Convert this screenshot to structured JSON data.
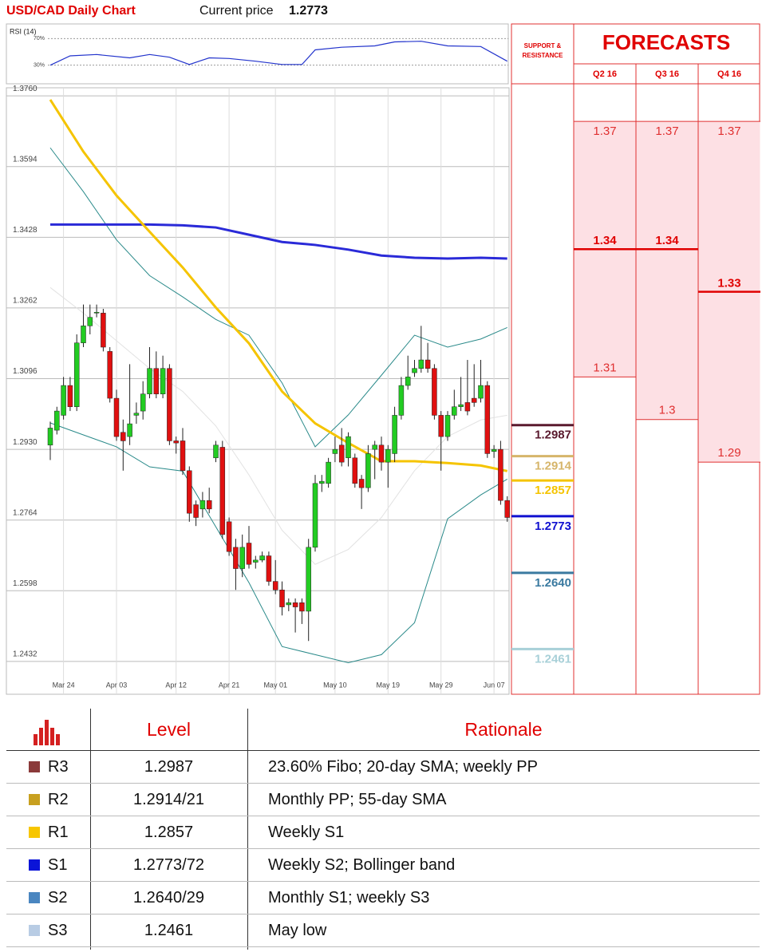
{
  "header": {
    "title": "USD/CAD Daily Chart",
    "price_label": "Current price",
    "price": "1.2773"
  },
  "chart_data": [
    {
      "type": "line",
      "title": "RSI (14)",
      "ylim": [
        2,
        92
      ],
      "yticks": [
        {
          "value": 30,
          "label": "30%"
        },
        {
          "value": 70,
          "label": "70%"
        }
      ],
      "grid": true,
      "color": "#2233cc",
      "x": [
        0,
        3,
        7,
        12,
        15,
        18,
        21,
        24,
        27,
        31,
        35,
        38,
        40,
        44,
        49,
        52,
        56,
        60,
        65,
        69
      ],
      "values": [
        30,
        44,
        46,
        41,
        46,
        42,
        31,
        41,
        40,
        36,
        31,
        31,
        53,
        57,
        59,
        65,
        66,
        59,
        58,
        36
      ]
    },
    {
      "type": "candlestick",
      "ylim": [
        1.2355,
        1.3779
      ],
      "yticks": [
        {
          "value": 1.376,
          "label": "1.3760"
        },
        1.3594,
        1.3428,
        1.3262,
        1.3096,
        {
          "value": 1.293,
          "label": "1.2930"
        },
        1.2764,
        1.2598,
        1.2432
      ],
      "grid": true,
      "up_color": "#22cc22",
      "down_color": "#e01010",
      "categories": [
        null,
        null,
        "Mar 24",
        null,
        null,
        null,
        null,
        null,
        null,
        null,
        "Apr 03",
        null,
        null,
        null,
        null,
        null,
        null,
        null,
        null,
        "Apr 12",
        null,
        null,
        null,
        null,
        null,
        null,
        null,
        "Apr 21",
        null,
        null,
        null,
        null,
        null,
        null,
        "May 01",
        null,
        null,
        null,
        null,
        null,
        null,
        null,
        null,
        "May 10",
        null,
        null,
        null,
        null,
        null,
        null,
        null,
        "May 19",
        null,
        null,
        null,
        null,
        null,
        null,
        null,
        "May 29",
        null,
        null,
        null,
        null,
        null,
        null,
        null,
        "Jun 07",
        null,
        null
      ],
      "open": [
        1.294,
        1.2975,
        1.301,
        1.308,
        1.303,
        1.318,
        1.322,
        1.325,
        1.325,
        1.316,
        1.305,
        1.297,
        1.296,
        1.301,
        1.302,
        1.306,
        1.312,
        1.306,
        1.312,
        1.295,
        1.295,
        1.288,
        1.28,
        1.279,
        1.281,
        1.291,
        1.2935,
        1.276,
        1.27,
        1.265,
        1.271,
        1.2665,
        1.267,
        1.268,
        1.262,
        1.26,
        1.2565,
        1.257,
        1.257,
        1.255,
        1.27,
        1.285,
        1.285,
        1.292,
        1.294,
        1.291,
        1.291,
        1.286,
        1.284,
        1.293,
        1.294,
        1.29,
        1.292,
        1.301,
        1.308,
        1.311,
        1.312,
        1.314,
        1.312,
        1.301,
        1.296,
        1.301,
        1.303,
        1.304,
        1.305,
        1.305,
        1.308,
        1.2925,
        1.293,
        1.281
      ],
      "high": [
        1.2995,
        1.303,
        1.31,
        1.31,
        1.32,
        1.327,
        1.327,
        1.327,
        1.326,
        1.317,
        1.307,
        1.3,
        1.313,
        1.304,
        1.309,
        1.317,
        1.316,
        1.315,
        1.313,
        1.296,
        1.298,
        1.289,
        1.281,
        1.283,
        1.284,
        1.295,
        1.295,
        1.277,
        1.272,
        1.273,
        1.275,
        1.268,
        1.269,
        1.269,
        1.267,
        1.262,
        1.258,
        1.258,
        1.258,
        1.272,
        1.287,
        1.287,
        1.291,
        1.296,
        1.298,
        1.297,
        1.292,
        1.287,
        1.294,
        1.295,
        1.296,
        1.294,
        1.303,
        1.31,
        1.315,
        1.314,
        1.322,
        1.318,
        1.313,
        1.302,
        1.302,
        1.307,
        1.31,
        1.314,
        1.313,
        1.314,
        1.309,
        1.294,
        1.295,
        1.282
      ],
      "low": [
        1.2905,
        1.2965,
        1.3,
        1.302,
        1.302,
        1.317,
        1.32,
        1.324,
        1.316,
        1.304,
        1.295,
        1.288,
        1.294,
        1.299,
        1.3,
        1.305,
        1.305,
        1.305,
        1.294,
        1.292,
        1.287,
        1.276,
        1.275,
        1.277,
        1.278,
        1.29,
        1.272,
        1.268,
        1.26,
        1.263,
        1.265,
        1.265,
        1.2665,
        1.261,
        1.259,
        1.254,
        1.255,
        1.25,
        1.252,
        1.248,
        1.269,
        1.283,
        1.284,
        1.29,
        1.289,
        1.289,
        1.284,
        1.279,
        1.283,
        1.286,
        1.288,
        1.284,
        1.29,
        1.3,
        1.307,
        1.31,
        1.311,
        1.311,
        1.3,
        1.288,
        1.295,
        1.3,
        1.302,
        1.301,
        1.303,
        1.304,
        1.291,
        1.291,
        1.28,
        1.276
      ],
      "close": [
        1.298,
        1.302,
        1.308,
        1.303,
        1.318,
        1.322,
        1.324,
        1.3252,
        1.317,
        1.305,
        1.296,
        1.295,
        1.299,
        1.3015,
        1.306,
        1.312,
        1.306,
        1.312,
        1.295,
        1.2945,
        1.288,
        1.278,
        1.277,
        1.281,
        1.279,
        1.294,
        1.273,
        1.269,
        1.265,
        1.27,
        1.266,
        1.267,
        1.268,
        1.262,
        1.26,
        1.256,
        1.257,
        1.256,
        1.255,
        1.27,
        1.285,
        1.2855,
        1.29,
        1.293,
        1.29,
        1.296,
        1.285,
        1.284,
        1.292,
        1.294,
        1.29,
        1.293,
        1.301,
        1.308,
        1.31,
        1.312,
        1.314,
        1.312,
        1.301,
        1.296,
        1.301,
        1.303,
        1.3035,
        1.302,
        1.304,
        1.308,
        1.292,
        1.293,
        1.281,
        1.277
      ],
      "lines": [
        {
          "color": "#e2e2e2",
          "width": 1,
          "x": [
            0,
            5,
            10,
            15,
            20,
            25,
            30,
            35,
            40,
            45,
            50,
            55,
            60,
            65,
            69
          ],
          "values": [
            1.331,
            1.325,
            1.3185,
            1.312,
            1.3066,
            1.2985,
            1.287,
            1.274,
            1.266,
            1.2695,
            1.277,
            1.288,
            1.296,
            1.2999,
            1.301
          ]
        },
        {
          "color": "#2a8a8a",
          "width": 1,
          "x": [
            0,
            5,
            10,
            15,
            20,
            25,
            30,
            35,
            40,
            45,
            50,
            55,
            60,
            65,
            69
          ],
          "values": [
            1.3638,
            1.3535,
            1.3422,
            1.3338,
            1.3288,
            1.3235,
            1.3198,
            1.3086,
            1.2936,
            1.3011,
            1.3104,
            1.3198,
            1.317,
            1.3189,
            1.3216
          ]
        },
        {
          "color": "#2a8a8a",
          "width": 1,
          "x": [
            0,
            5,
            10,
            15,
            20,
            25,
            30,
            35,
            40,
            45,
            50,
            55,
            60,
            65,
            69
          ],
          "values": [
            1.2992,
            1.2964,
            1.2936,
            1.2889,
            1.2879,
            1.2748,
            1.2617,
            1.2467,
            1.2448,
            1.2429,
            1.2448,
            1.2523,
            1.2767,
            1.2823,
            1.286
          ]
        },
        {
          "color": "#2a2ad8",
          "width": 3,
          "x": [
            0,
            5,
            10,
            15,
            20,
            25,
            30,
            35,
            40,
            45,
            50,
            55,
            60,
            65,
            69
          ],
          "values": [
            1.3458,
            1.3458,
            1.3458,
            1.3458,
            1.3456,
            1.3451,
            1.3434,
            1.3417,
            1.341,
            1.3399,
            1.3385,
            1.338,
            1.3378,
            1.338,
            1.3378
          ]
        },
        {
          "color": "#f5c400",
          "width": 3,
          "x": [
            0,
            5,
            10,
            15,
            20,
            25,
            30,
            35,
            40,
            45,
            50,
            55,
            60,
            65,
            69
          ],
          "values": [
            1.3751,
            1.3629,
            1.3526,
            1.3441,
            1.3357,
            1.3263,
            1.3179,
            1.3066,
            1.2991,
            1.2945,
            1.2902,
            1.2902,
            1.2898,
            1.2892,
            1.2879
          ]
        }
      ]
    }
  ],
  "levels": {
    "title": "SUPPORT & RESISTANCE",
    "values": [
      1.2987,
      1.2914,
      1.2857,
      1.2773,
      1.264,
      1.2461
    ],
    "value_labels": [
      "1.2987",
      "1.2914",
      "1.2857",
      "1.2773",
      "1.2640",
      "1.2461"
    ],
    "colors": [
      "#5a1a2e",
      "#d6b56a",
      "#f5c400",
      "#1010d0",
      "#3a7aa0",
      "#a8d0d8"
    ]
  },
  "forecasts": {
    "title": "FORECASTS",
    "columns": [
      "Q2 16",
      "Q3 16",
      "Q4 16"
    ],
    "values": [
      [
        1.37,
        1.34,
        1.31
      ],
      [
        1.37,
        1.34,
        1.3
      ],
      [
        1.37,
        1.33,
        1.29
      ]
    ]
  },
  "table": {
    "header": [
      "Level",
      "Rationale"
    ],
    "rows": [
      {
        "code": "R3",
        "color": "#8b3a3a",
        "level": "1.2987",
        "rationale": "23.60% Fibo; 20-day SMA; weekly PP"
      },
      {
        "code": "R2",
        "color": "#c8a020",
        "level": "1.2914/21",
        "rationale": "Monthly PP; 55-day SMA"
      },
      {
        "code": "R1",
        "color": "#f7c600",
        "level": "1.2857",
        "rationale": "Weekly S1"
      },
      {
        "code": "S1",
        "color": "#0a14d8",
        "level": "1.2773/72",
        "rationale": "Weekly S2; Bollinger band"
      },
      {
        "code": "S2",
        "color": "#4a86c0",
        "level": "1.2640/29",
        "rationale": "Monthly S1; weekly S3"
      },
      {
        "code": "S3",
        "color": "#b8cce4",
        "level": "1.2461",
        "rationale": "May low"
      }
    ]
  }
}
